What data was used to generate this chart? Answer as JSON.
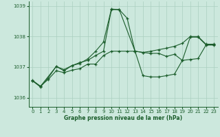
{
  "title": "Graphe pression niveau de la mer (hPa)",
  "background_color": "#cce8dd",
  "grid_color": "#aacfbf",
  "line_color": "#1a5c2a",
  "ylim": [
    1035.7,
    1039.15
  ],
  "xlim": [
    -0.5,
    23.5
  ],
  "yticks": [
    1036,
    1037,
    1038,
    1039
  ],
  "xticks": [
    0,
    1,
    2,
    3,
    4,
    5,
    6,
    7,
    8,
    9,
    10,
    11,
    12,
    13,
    14,
    15,
    16,
    17,
    18,
    19,
    20,
    21,
    22,
    23
  ],
  "series1_x": [
    0,
    1,
    2,
    3,
    4,
    5,
    6,
    7,
    8,
    9,
    10,
    11,
    12,
    13,
    14,
    15,
    16,
    17,
    18,
    19,
    20,
    21,
    22,
    23
  ],
  "series1_y": [
    1036.55,
    1036.35,
    1036.65,
    1037.02,
    1036.92,
    1037.05,
    1037.15,
    1037.22,
    1037.38,
    1037.52,
    1038.88,
    1038.88,
    1038.6,
    1037.52,
    1037.48,
    1037.52,
    1037.57,
    1037.62,
    1037.68,
    1037.78,
    1038.0,
    1038.0,
    1037.75,
    1037.75
  ],
  "series2_x": [
    0,
    1,
    3,
    4,
    5,
    6,
    7,
    8,
    9,
    10,
    11,
    13,
    14,
    15,
    16,
    17,
    18,
    19,
    20,
    21,
    22,
    23
  ],
  "series2_y": [
    1036.57,
    1036.37,
    1037.02,
    1036.88,
    1037.05,
    1037.12,
    1037.27,
    1037.52,
    1037.82,
    1038.9,
    1038.88,
    1037.52,
    1036.72,
    1036.68,
    1036.68,
    1036.72,
    1036.77,
    1037.22,
    1037.98,
    1037.98,
    1037.73,
    1037.73
  ],
  "series3_x": [
    0,
    1,
    2,
    3,
    4,
    5,
    6,
    7,
    8,
    9,
    10,
    11,
    12,
    13,
    14,
    15,
    16,
    17,
    18,
    19,
    20,
    21,
    22,
    23
  ],
  "series3_y": [
    1036.55,
    1036.38,
    1036.6,
    1036.88,
    1036.82,
    1036.9,
    1036.95,
    1037.1,
    1037.1,
    1037.38,
    1037.52,
    1037.52,
    1037.52,
    1037.52,
    1037.48,
    1037.45,
    1037.45,
    1037.35,
    1037.42,
    1037.22,
    1037.25,
    1037.28,
    1037.72,
    1037.72
  ]
}
